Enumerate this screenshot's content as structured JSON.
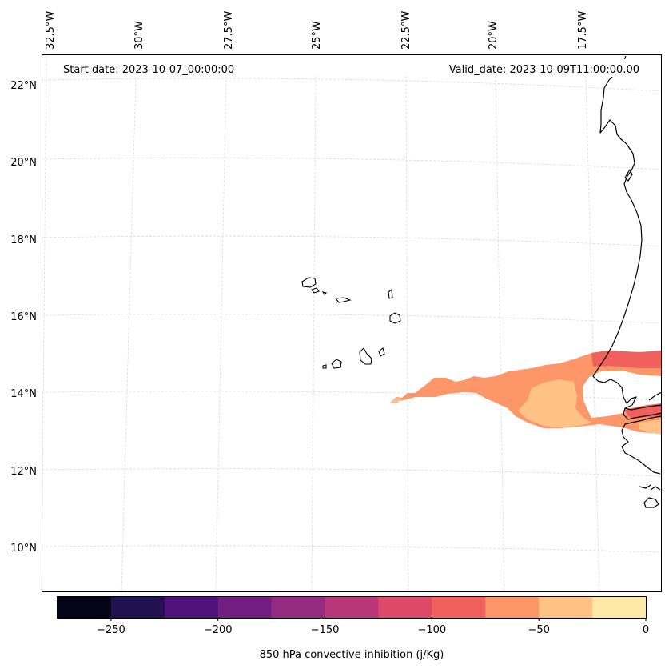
{
  "header": {
    "start_date": "Start date: 2023-10-07_00:00:00",
    "valid_date": "Valid_date: 2023-10-09T11:00:00.00"
  },
  "map": {
    "lon_labels": [
      "32.5°W",
      "30°W",
      "27.5°W",
      "25°W",
      "22.5°W",
      "20°W",
      "17.5°W"
    ],
    "lat_labels": [
      "22°N",
      "20°N",
      "18°N",
      "16°N",
      "14°N",
      "12°N",
      "10°N"
    ],
    "field_colors": {
      "-100_-75": "#f1605d",
      "-75_-50": "#fd9668",
      "-50_-25": "#fec287"
    }
  },
  "colorbar": {
    "label": "850 hPa convective inhibition (j/Kg)",
    "colors": [
      "#050416",
      "#221150",
      "#4f127b",
      "#721f81",
      "#932b80",
      "#b73779",
      "#dd4a69",
      "#f1605d",
      "#fd9668",
      "#fec287",
      "#fde8a5"
    ],
    "tick_labels": [
      "−250",
      "−200",
      "−150",
      "−100",
      "−50",
      "0"
    ]
  }
}
